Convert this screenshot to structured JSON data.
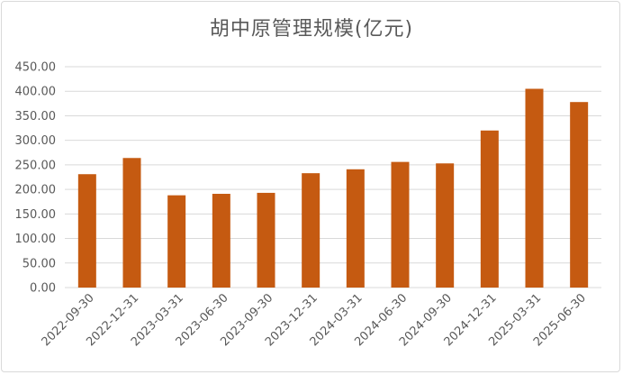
{
  "chart_data": {
    "type": "bar",
    "title": "胡中原管理规模(亿元)",
    "categories": [
      "2022-09-30",
      "2022-12-31",
      "2023-03-31",
      "2023-06-30",
      "2023-09-30",
      "2023-12-31",
      "2024-03-31",
      "2024-06-30",
      "2024-09-30",
      "2024-12-31",
      "2025-03-31",
      "2025-06-30"
    ],
    "values": [
      231,
      264,
      188,
      191,
      193,
      233,
      241,
      256,
      253,
      320,
      405,
      378
    ],
    "yticks": [
      "0.00",
      "50.00",
      "100.00",
      "150.00",
      "200.00",
      "250.00",
      "300.00",
      "350.00",
      "400.00",
      "450.00"
    ],
    "ylim": [
      0,
      450
    ],
    "grid": true,
    "bar_color": "#c55a11",
    "grid_color": "#d9d9d9"
  }
}
